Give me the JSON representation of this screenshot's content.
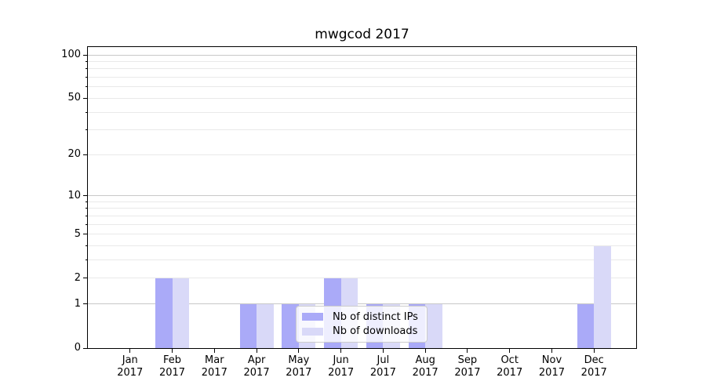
{
  "chart_data": {
    "type": "bar",
    "title": "mwgcod 2017",
    "categories": [
      "Jan",
      "Feb",
      "Mar",
      "Apr",
      "May",
      "Jun",
      "Jul",
      "Aug",
      "Sep",
      "Oct",
      "Nov",
      "Dec"
    ],
    "category_year": "2017",
    "series": [
      {
        "name": "Nb of distinct IPs",
        "color": "#aaaaf8",
        "values": [
          0,
          2,
          0,
          1,
          1,
          2,
          1,
          1,
          0,
          0,
          0,
          1
        ]
      },
      {
        "name": "Nb of downloads",
        "color": "#d9d9f8",
        "values": [
          0,
          2,
          0,
          1,
          1,
          2,
          1,
          1,
          0,
          0,
          0,
          4
        ]
      }
    ],
    "y_scale": "log1p",
    "y_tick_labels": [
      "0",
      "1",
      "2",
      "5",
      "10",
      "20",
      "50",
      "100"
    ],
    "y_tick_values": [
      0,
      1,
      2,
      5,
      10,
      20,
      50,
      100
    ],
    "y_major_gridlines": [
      1,
      10,
      100
    ],
    "y_minor_gridlines": [
      2,
      3,
      4,
      5,
      6,
      7,
      8,
      9,
      20,
      30,
      40,
      50,
      60,
      70,
      80,
      90
    ],
    "ylim": [
      0,
      113
    ],
    "grid": true,
    "legend_position": "inside-bottom-center",
    "colors": {
      "grid_major": "#c8c8c8",
      "grid_minor": "#e9e9e9",
      "spine": "#000000",
      "background": "#ffffff"
    }
  }
}
